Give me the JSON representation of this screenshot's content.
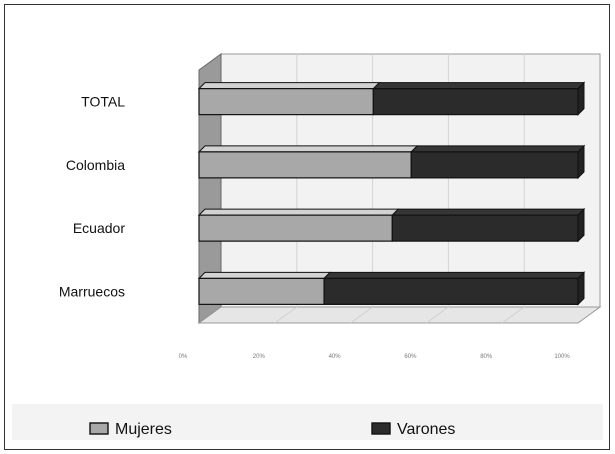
{
  "chart_data": {
    "type": "bar",
    "orientation": "horizontal",
    "stacked": "percent",
    "three_d": true,
    "categories": [
      "TOTAL",
      "Colombia",
      "Ecuador",
      "Marruecos"
    ],
    "series": [
      {
        "name": "Mujeres",
        "values": [
          46,
          56,
          51,
          33
        ],
        "color": "#a8a8a8"
      },
      {
        "name": "Varones",
        "values": [
          54,
          44,
          49,
          67
        ],
        "color": "#2b2b2b"
      }
    ],
    "x_ticks": [
      "0%",
      "20%",
      "40%",
      "60%",
      "80%",
      "100%"
    ],
    "xlim": [
      0,
      100
    ],
    "grid": true,
    "legend_position": "bottom"
  }
}
